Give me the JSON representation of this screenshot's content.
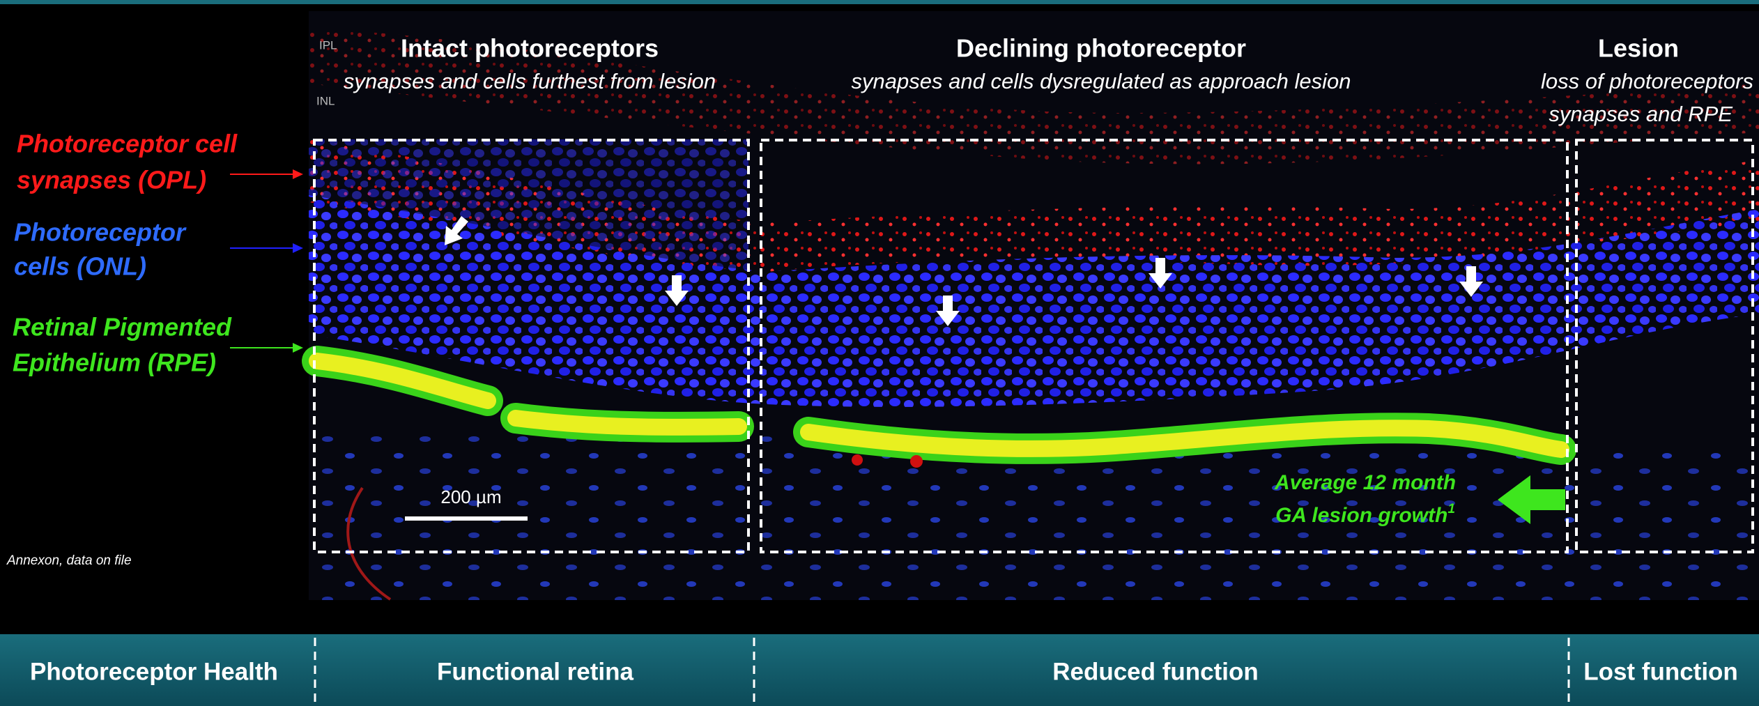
{
  "image_labels": {
    "ipl": "IPL",
    "inl": "INL"
  },
  "panels": [
    {
      "title": "Intact photoreceptors",
      "subtitle": "synapses and cells furthest from lesion"
    },
    {
      "title": "Declining photoreceptor",
      "subtitle": "synapses and cells dysregulated as approach lesion"
    },
    {
      "title": "Lesion",
      "subtitle_lines": [
        "loss of photoreceptors",
        "synapses and RPE"
      ]
    }
  ],
  "layers": [
    {
      "label_lines": [
        "Photoreceptor cell",
        "synapses (OPL)"
      ]
    },
    {
      "label_lines": [
        "Photoreceptor",
        "cells (ONL)"
      ]
    },
    {
      "label_lines": [
        "Retinal Pigmented",
        "Epithelium (RPE)"
      ]
    }
  ],
  "scale_bar": "200 µm",
  "annotation": {
    "lines": [
      "Average 12 month",
      "GA lesion growth"
    ],
    "superscript": "1"
  },
  "source": "Annexon, data on file",
  "footer": {
    "row_label": "Photoreceptor Health",
    "zones": [
      "Functional retina",
      "Reduced function",
      "Lost function"
    ]
  }
}
